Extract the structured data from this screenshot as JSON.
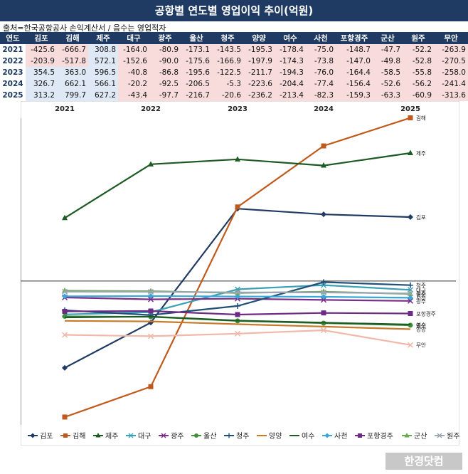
{
  "title": "공항별 연도별 영업이익 추이(억원)",
  "source": "출처=한국공항공사 손익계산서 / 음수는 영업적자",
  "table": {
    "year_header": "연도",
    "airports": [
      "김포",
      "김해",
      "제주",
      "대구",
      "광주",
      "울산",
      "청주",
      "양양",
      "여수",
      "사천",
      "포항경주",
      "군산",
      "원주",
      "무안"
    ],
    "rows": [
      {
        "year": "2021",
        "values": [
          -425.6,
          -666.7,
          308.8,
          -164.0,
          -80.9,
          -173.1,
          -143.5,
          -195.3,
          -178.4,
          -75.0,
          -148.7,
          -47.7,
          -52.2,
          -263.9
        ]
      },
      {
        "year": "2022",
        "values": [
          -203.9,
          -517.8,
          572.1,
          -152.6,
          -90.0,
          -175.6,
          -166.9,
          -197.9,
          -174.3,
          -73.8,
          -147.0,
          -49.8,
          -52.8,
          -270.5
        ]
      },
      {
        "year": "2023",
        "values": [
          354.5,
          363.0,
          596.5,
          -40.8,
          -86.8,
          -195.6,
          -122.5,
          -211.7,
          -194.3,
          -76.0,
          -164.4,
          -58.5,
          -55.8,
          -258.0
        ]
      },
      {
        "year": "2024",
        "values": [
          326.7,
          662.1,
          566.1,
          -20.2,
          -92.5,
          -206.5,
          -5.3,
          -223.6,
          -204.4,
          -77.4,
          -156.4,
          -52.6,
          -56.2,
          -241.4
        ]
      },
      {
        "year": "2025",
        "values": [
          313.2,
          799.7,
          627.2,
          -43.4,
          -97.7,
          -216.7,
          -20.6,
          -236.2,
          -213.4,
          -82.3,
          -159.3,
          -63.3,
          -60.9,
          -313.6
        ]
      }
    ]
  },
  "chart_data": {
    "type": "line",
    "title": "",
    "x": [
      "2021",
      "2022",
      "2023",
      "2024",
      "2025"
    ],
    "ylim": [
      -700,
      800
    ],
    "yticks": [
      700,
      500,
      300,
      100,
      -100,
      -300,
      -500,
      -700
    ],
    "grid": false,
    "legend_position": "bottom",
    "series": [
      {
        "name": "김포",
        "color": "#1f3b63",
        "marker": "diamond",
        "values": [
          -425.6,
          -203.9,
          354.5,
          326.7,
          313.2
        ]
      },
      {
        "name": "김해",
        "color": "#c05a1c",
        "marker": "square",
        "values": [
          -666.7,
          -517.8,
          363.0,
          662.1,
          799.7
        ]
      },
      {
        "name": "제주",
        "color": "#1e5a24",
        "marker": "triangle",
        "values": [
          308.8,
          572.1,
          596.5,
          566.1,
          627.2
        ]
      },
      {
        "name": "대구",
        "color": "#3aa0b4",
        "marker": "x",
        "values": [
          -164.0,
          -152.6,
          -40.8,
          -20.2,
          -43.4
        ]
      },
      {
        "name": "광주",
        "color": "#7a2e8a",
        "marker": "x",
        "values": [
          -80.9,
          -90.0,
          -86.8,
          -92.5,
          -97.7
        ]
      },
      {
        "name": "울산",
        "color": "#3f8f3a",
        "marker": "circle",
        "values": [
          -173.1,
          -175.6,
          -195.6,
          -206.5,
          -216.7
        ]
      },
      {
        "name": "청주",
        "color": "#1f4e79",
        "marker": "plus",
        "values": [
          -143.5,
          -166.9,
          -122.5,
          -5.3,
          -20.6
        ]
      },
      {
        "name": "양양",
        "color": "#c87a2a",
        "marker": "none",
        "values": [
          -195.3,
          -197.9,
          -211.7,
          -223.6,
          -236.2
        ]
      },
      {
        "name": "여수",
        "color": "#1e5a24",
        "marker": "none",
        "values": [
          -178.4,
          -174.3,
          -194.3,
          -204.4,
          -213.4
        ]
      },
      {
        "name": "사천",
        "color": "#38a8d8",
        "marker": "diamond",
        "values": [
          -75.0,
          -73.8,
          -76.0,
          -77.4,
          -82.3
        ]
      },
      {
        "name": "포항경주",
        "color": "#6e2b86",
        "marker": "square",
        "values": [
          -148.7,
          -147.0,
          -164.4,
          -156.4,
          -159.3
        ]
      },
      {
        "name": "군산",
        "color": "#6aa84f",
        "marker": "triangle",
        "values": [
          -47.7,
          -49.8,
          -58.5,
          -52.6,
          -63.3
        ]
      },
      {
        "name": "원주",
        "color": "#9aa6b2",
        "marker": "x",
        "values": [
          -52.2,
          -52.8,
          -55.8,
          -56.2,
          -60.9
        ]
      },
      {
        "name": "무안",
        "color": "#f0b8a8",
        "marker": "x",
        "values": [
          -263.9,
          -270.5,
          -258.0,
          -241.4,
          -313.6
        ]
      }
    ],
    "end_labels": [
      "제주",
      "광주",
      "군산",
      "원주",
      "사천",
      "대구",
      "청주",
      "김포",
      "김해",
      "포항경주",
      "울산",
      "여수",
      "양양",
      "무안"
    ]
  },
  "watermark": "한경닷컴"
}
